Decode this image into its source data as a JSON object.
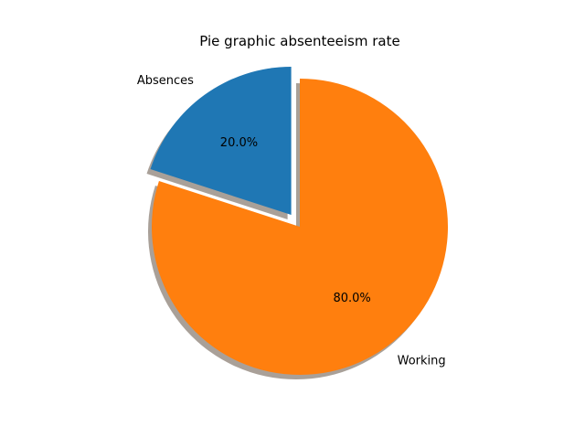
{
  "chart_data": {
    "type": "pie",
    "title": "Pie graphic absenteeism rate",
    "labels": [
      "Absences",
      "Working"
    ],
    "values": [
      20.0,
      80.0
    ],
    "percent_labels": [
      "20.0%",
      "80.0%"
    ],
    "colors": [
      "#1f77b4",
      "#ff7f0e"
    ],
    "exploded": [
      true,
      false
    ],
    "shadow": true,
    "start_angle": 90,
    "shadow_color": "#9a8f86"
  }
}
